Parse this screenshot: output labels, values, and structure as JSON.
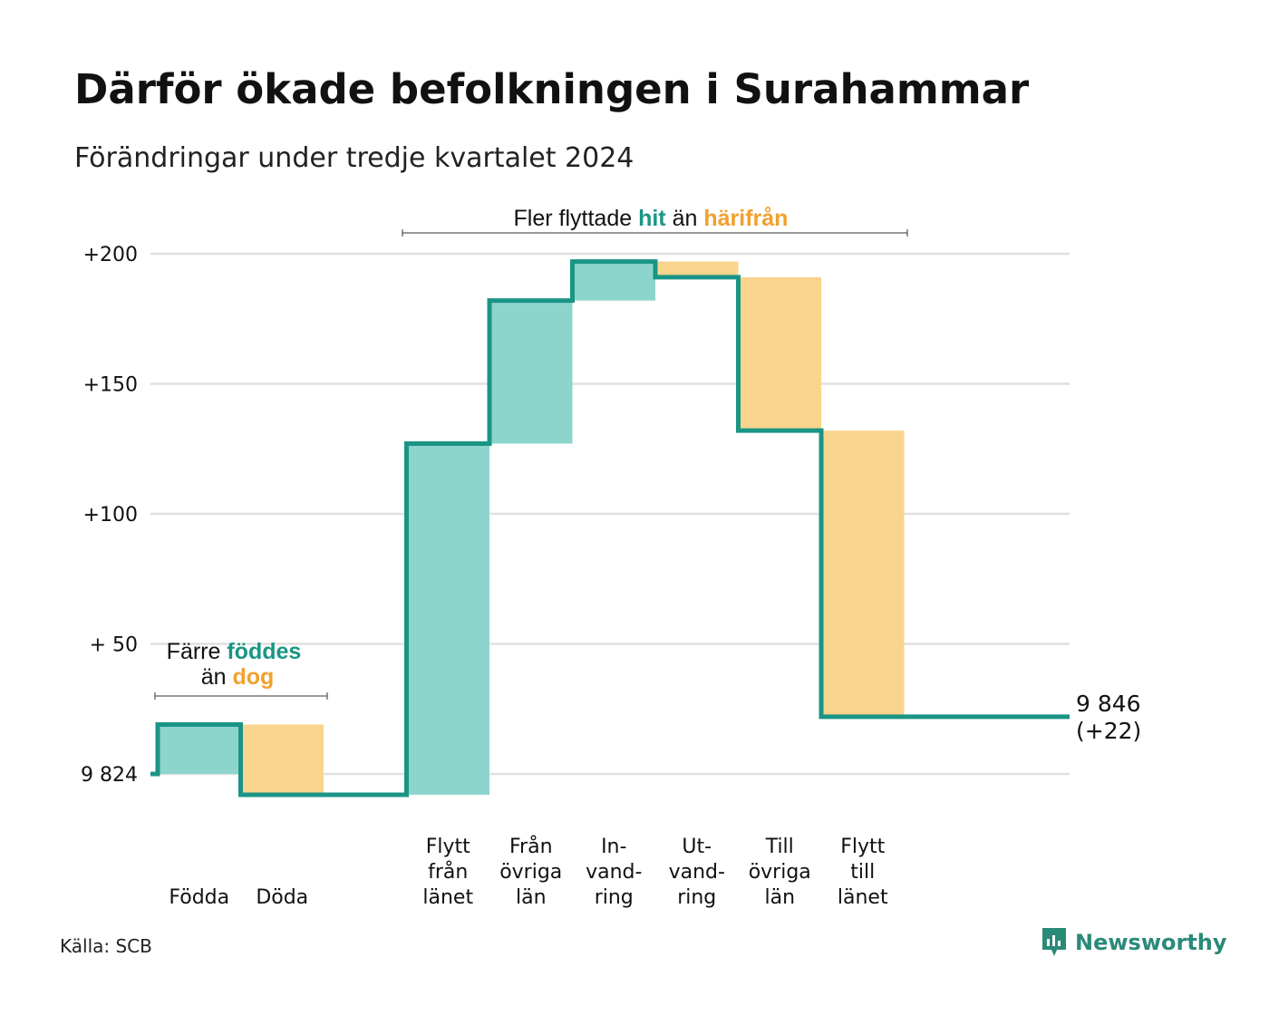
{
  "title": "Därför ökade befolkningen i Surahammar",
  "subtitle": "Förändringar under tredje kvartalet 2024",
  "source": "Källa: SCB",
  "brand": "Newsworthy",
  "colors": {
    "increase_fill": "#8dd5cc",
    "decrease_fill": "#f9d48d",
    "line": "#1a9585",
    "accent_green": "#1a9585",
    "accent_orange": "#f2a02d",
    "grid": "#e0e0e0"
  },
  "annotations": {
    "births": {
      "line1_prefix": "Färre",
      "line1_highlight": "föddes",
      "line2_prefix": "än",
      "line2_highlight": "dog"
    },
    "migration": {
      "prefix": "Fler flyttade",
      "highlight1": "hit",
      "middle": "än",
      "highlight2": "härifrån"
    }
  },
  "chart_data": {
    "type": "waterfall",
    "base_value": 9824,
    "base_label": "9 824",
    "y_ticks": [
      {
        "value": 0,
        "label": "9 824"
      },
      {
        "value": 50,
        "label": "+ 50"
      },
      {
        "value": 100,
        "label": "+100"
      },
      {
        "value": 150,
        "label": "+150"
      },
      {
        "value": 200,
        "label": "+200"
      }
    ],
    "ylim": [
      -8,
      205
    ],
    "grid": true,
    "categories": [
      {
        "lines": [
          "Födda"
        ],
        "change": 19
      },
      {
        "lines": [
          "Döda"
        ],
        "change": -27
      },
      {
        "lines": [
          ""
        ],
        "change": 0
      },
      {
        "lines": [
          "Flytt",
          "från",
          "länet"
        ],
        "change": 135
      },
      {
        "lines": [
          "Från",
          "övriga",
          "län"
        ],
        "change": 55
      },
      {
        "lines": [
          "In-",
          "vand-",
          "ring"
        ],
        "change": 15
      },
      {
        "lines": [
          "Ut-",
          "vand-",
          "ring"
        ],
        "change": -6
      },
      {
        "lines": [
          "Till",
          "övriga",
          "län"
        ],
        "change": -59
      },
      {
        "lines": [
          "Flytt",
          "till",
          "länet"
        ],
        "change": -110
      }
    ],
    "end_value_label": "9 846",
    "end_change_label": "(+22)"
  }
}
